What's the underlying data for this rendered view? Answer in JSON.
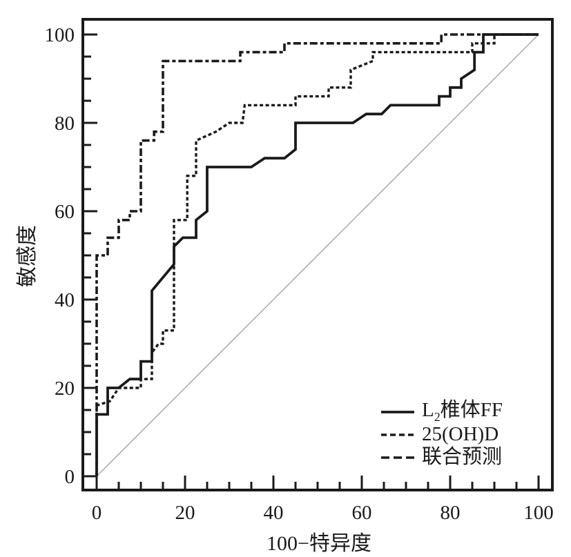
{
  "figure": {
    "background": "#ffffff",
    "ink_color": "#1a1a1a",
    "reference_color": "#a8a8a8"
  },
  "legend": {
    "items": [
      {
        "base": "L",
        "sub": "2",
        "rest": "椎体FF",
        "dash": ""
      },
      {
        "label": "25(OH)D",
        "dash": "8,5"
      },
      {
        "label": "联合预测",
        "dash": "12,6"
      }
    ]
  },
  "chart_data": {
    "type": "line",
    "subtype": "ROC curves (step interpolation)",
    "title": "",
    "xlabel": "100−特异度",
    "ylabel": "敏感度",
    "xlim": [
      0,
      100
    ],
    "ylim": [
      0,
      100
    ],
    "x_ticks": [
      0,
      20,
      40,
      60,
      80,
      100
    ],
    "y_ticks": [
      0,
      20,
      40,
      60,
      80,
      100
    ],
    "minor_tick_step": 5,
    "grid": false,
    "legend_position": "lower right",
    "series": [
      {
        "name": "L2椎体FF",
        "slug": "l2-vertebra-ff",
        "line_style": "solid",
        "dash": "",
        "color": "#1a1a1a",
        "width": 3.8,
        "points": [
          [
            0,
            0
          ],
          [
            0,
            14
          ],
          [
            2.5,
            14
          ],
          [
            2.5,
            20
          ],
          [
            5,
            20
          ],
          [
            7.5,
            22
          ],
          [
            10,
            22
          ],
          [
            10,
            26
          ],
          [
            12.5,
            26
          ],
          [
            12.5,
            42
          ],
          [
            17.5,
            48
          ],
          [
            17.5,
            52
          ],
          [
            19.5,
            54
          ],
          [
            22.5,
            54
          ],
          [
            22.5,
            58
          ],
          [
            25,
            60
          ],
          [
            25,
            70
          ],
          [
            35,
            70
          ],
          [
            38,
            72
          ],
          [
            42.5,
            72
          ],
          [
            45,
            74
          ],
          [
            45,
            80
          ],
          [
            58,
            80
          ],
          [
            61,
            82
          ],
          [
            64.5,
            82
          ],
          [
            66.5,
            84
          ],
          [
            77.5,
            84
          ],
          [
            77.5,
            86
          ],
          [
            80,
            86
          ],
          [
            80,
            88
          ],
          [
            82.5,
            88
          ],
          [
            82.5,
            90
          ],
          [
            85.5,
            92
          ],
          [
            85.5,
            96
          ],
          [
            87.5,
            96
          ],
          [
            87.5,
            100
          ],
          [
            100,
            100
          ]
        ]
      },
      {
        "name": "25(OH)D",
        "slug": "25-oh-d",
        "line_style": "dashed-fine",
        "dash": "5,3.5",
        "color": "#1a1a1a",
        "width": 3.4,
        "points": [
          [
            0,
            0
          ],
          [
            0,
            16
          ],
          [
            3,
            17
          ],
          [
            5,
            20
          ],
          [
            10,
            20
          ],
          [
            10,
            22
          ],
          [
            12.5,
            22
          ],
          [
            12.5,
            28
          ],
          [
            14,
            30
          ],
          [
            15,
            30
          ],
          [
            15,
            33
          ],
          [
            17.5,
            33
          ],
          [
            17.5,
            58
          ],
          [
            20.5,
            58
          ],
          [
            20.5,
            68
          ],
          [
            22.5,
            68
          ],
          [
            22.5,
            76
          ],
          [
            27,
            78
          ],
          [
            30,
            80
          ],
          [
            33,
            80
          ],
          [
            33.5,
            84
          ],
          [
            45,
            84
          ],
          [
            45,
            86
          ],
          [
            52.5,
            86
          ],
          [
            52.5,
            88
          ],
          [
            57.5,
            88
          ],
          [
            57.5,
            92
          ],
          [
            62.5,
            94
          ],
          [
            62.5,
            96
          ],
          [
            85,
            96
          ],
          [
            85,
            98
          ],
          [
            90,
            98
          ],
          [
            90,
            100
          ],
          [
            100,
            100
          ]
        ]
      },
      {
        "name": "联合预测",
        "slug": "combined-prediction",
        "line_style": "dashed-coarse",
        "dash": "11,4,5,4",
        "color": "#1a1a1a",
        "width": 3.6,
        "points": [
          [
            0,
            0
          ],
          [
            0,
            50
          ],
          [
            2.5,
            50
          ],
          [
            2.5,
            54
          ],
          [
            5,
            54
          ],
          [
            5,
            58
          ],
          [
            7.5,
            58
          ],
          [
            7.5,
            60
          ],
          [
            10,
            60
          ],
          [
            10,
            76
          ],
          [
            13,
            76
          ],
          [
            13,
            78
          ],
          [
            15,
            78
          ],
          [
            15,
            94
          ],
          [
            32.5,
            94
          ],
          [
            32.5,
            96
          ],
          [
            42.5,
            96
          ],
          [
            42.5,
            98
          ],
          [
            78,
            98
          ],
          [
            78,
            100
          ],
          [
            100,
            100
          ]
        ]
      }
    ],
    "reference_line": {
      "name": "chance-diagonal",
      "points": [
        [
          0,
          0
        ],
        [
          100,
          100
        ]
      ],
      "color": "#a8a8a8",
      "width": 1.5
    }
  }
}
